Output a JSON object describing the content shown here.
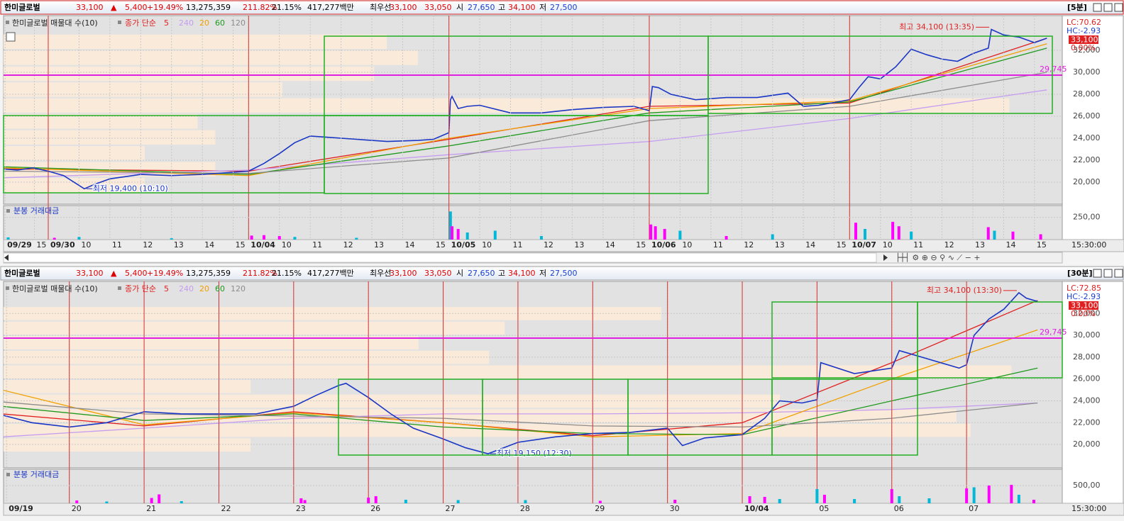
{
  "chart_data": [
    {
      "type": "line",
      "header": {
        "name": "한미글로벌",
        "price": "33,100",
        "arrow": "▲",
        "change": "5,400",
        "change_pct": "+19.49%",
        "volume": "13,275,359",
        "volume_ratio": "211.82%",
        "turnover": "21.15%",
        "amount": "417,277백만",
        "best_label": "최우선",
        "ask": "33,100",
        "bid": "33,050",
        "open_label": "시",
        "open": "27,650",
        "high_label": "고",
        "high": "34,100",
        "low_label": "저",
        "low": "27,500",
        "interval": "[5분]"
      },
      "legend_title": "한미글로벌 매물대 수(10)",
      "ma_label": "종가 단순",
      "xlim": [
        -1.45,
        32.9
      ],
      "ylim": [
        18000,
        35160
      ],
      "yticks": [
        {
          "value": 20000,
          "label": "20,000"
        },
        {
          "value": 22000,
          "label": "22,000"
        },
        {
          "value": 24000,
          "label": "24,000"
        },
        {
          "value": 26000,
          "label": "26,000"
        },
        {
          "value": 28000,
          "label": "28,000"
        },
        {
          "value": 30000,
          "label": "30,000"
        },
        {
          "value": 32000,
          "label": "32,000"
        }
      ],
      "xticks": [
        {
          "value": -1.4,
          "label": "09/29"
        },
        {
          "value": -0.45,
          "label": "15"
        },
        {
          "value": 0,
          "label": "09/30"
        },
        {
          "value": 1,
          "label": "10"
        },
        {
          "value": 2,
          "label": "11"
        },
        {
          "value": 3,
          "label": "12"
        },
        {
          "value": 4,
          "label": "13"
        },
        {
          "value": 5,
          "label": "14"
        },
        {
          "value": 6,
          "label": "15"
        },
        {
          "value": 6.5,
          "label": "10/04"
        },
        {
          "value": 7.5,
          "label": "10"
        },
        {
          "value": 8.5,
          "label": "11"
        },
        {
          "value": 9.5,
          "label": "12"
        },
        {
          "value": 10.5,
          "label": "13"
        },
        {
          "value": 11.5,
          "label": "14"
        },
        {
          "value": 12.5,
          "label": "15"
        },
        {
          "value": 13,
          "label": "10/05"
        },
        {
          "value": 14,
          "label": "10"
        },
        {
          "value": 15,
          "label": "11"
        },
        {
          "value": 16,
          "label": "12"
        },
        {
          "value": 17,
          "label": "13"
        },
        {
          "value": 18,
          "label": "14"
        },
        {
          "value": 19,
          "label": "15"
        },
        {
          "value": 19.5,
          "label": "10/06"
        },
        {
          "value": 20.5,
          "label": "10"
        },
        {
          "value": 21.5,
          "label": "11"
        },
        {
          "value": 22.5,
          "label": "12"
        },
        {
          "value": 23.5,
          "label": "13"
        },
        {
          "value": 24.5,
          "label": "14"
        },
        {
          "value": 25.5,
          "label": "15"
        },
        {
          "value": 26,
          "label": "10/07"
        },
        {
          "value": 27,
          "label": "10"
        },
        {
          "value": 28,
          "label": "11"
        },
        {
          "value": 29,
          "label": "12"
        },
        {
          "value": 30,
          "label": "13"
        },
        {
          "value": 31,
          "label": "14"
        },
        {
          "value": 32,
          "label": "15"
        }
      ],
      "day_starts": [
        0,
        6.5,
        13,
        19.5,
        26
      ],
      "price": {
        "color": "#1a36c4",
        "x": [
          -1.45,
          -1.0,
          -0.5,
          0,
          0.5,
          1.0,
          1.17,
          1.5,
          2,
          3,
          4,
          5,
          6,
          6.5,
          7,
          7.5,
          8,
          8.5,
          9,
          10,
          11,
          12,
          12.5,
          13,
          13.05,
          13.1,
          13.3,
          13.6,
          14,
          15,
          16,
          17,
          18,
          19,
          19.5,
          19.6,
          19.8,
          20.2,
          21,
          22,
          23,
          24,
          24.5,
          25,
          26,
          26.3,
          26.6,
          27,
          27.5,
          28,
          28.5,
          29,
          29.5,
          30,
          30.5,
          30.6,
          31,
          31.5,
          32,
          32.4
        ],
        "values": [
          21200,
          21100,
          21300,
          21000,
          20600,
          19700,
          19400,
          19800,
          20300,
          20700,
          20600,
          20700,
          20900,
          21000,
          21700,
          22600,
          23600,
          24200,
          24100,
          23900,
          23700,
          23800,
          23900,
          24500,
          27500,
          27800,
          26700,
          26900,
          27000,
          26300,
          26300,
          26600,
          26800,
          26900,
          26500,
          28700,
          28600,
          28000,
          27500,
          27700,
          27700,
          28100,
          26900,
          27000,
          27500,
          28600,
          29600,
          29400,
          30500,
          32100,
          31600,
          31200,
          31000,
          31700,
          32200,
          33900,
          33400,
          33200,
          32700,
          33100
        ]
      },
      "series": [
        {
          "name": "5",
          "color": "#e02020",
          "x": [
            -1.45,
            6.5,
            13,
            19.5,
            26,
            32.4
          ],
          "values": [
            21200,
            21000,
            23900,
            26900,
            27200,
            33100
          ]
        },
        {
          "name": "240",
          "color": "#c59cf0",
          "x": [
            -1.45,
            6.5,
            13,
            19.5,
            26,
            32.4
          ],
          "values": [
            20400,
            21100,
            22500,
            23700,
            25800,
            28400
          ]
        },
        {
          "name": "20",
          "color": "#f0a000",
          "x": [
            -1.45,
            6.5,
            13,
            19.5,
            26,
            32.4
          ],
          "values": [
            21300,
            20600,
            24000,
            26700,
            27400,
            32600
          ]
        },
        {
          "name": "60",
          "color": "#1f9a1f",
          "x": [
            -1.45,
            6.5,
            13,
            19.5,
            26,
            32.4
          ],
          "values": [
            21400,
            20700,
            23300,
            26300,
            27300,
            32200
          ]
        },
        {
          "name": "120",
          "color": "#8c8c8c",
          "x": [
            -1.45,
            6.5,
            13,
            19.5,
            26,
            32.4
          ],
          "values": [
            21000,
            20800,
            22200,
            25600,
            26900,
            30000
          ]
        }
      ],
      "profile": {
        "bins": [
          19000,
          20450,
          21900,
          23350,
          24800,
          26250,
          27700,
          29150,
          30600,
          32050,
          33500
        ],
        "values": [
          200,
          300,
          200,
          300,
          275,
          1425,
          395,
          525,
          587,
          543
        ],
        "xlim": [
          0,
          1500
        ]
      },
      "ref_line": {
        "value": 29745,
        "label": "29,745"
      },
      "high": {
        "text": "최고 34,100 (13:35)",
        "x": 30.6,
        "value": 34100
      },
      "low": {
        "text": "최저 19,400 (10:10)",
        "x": 1.17,
        "value": 19400
      },
      "right_labels": {
        "lc": "LC:70.62",
        "hc": "HC:-2.93",
        "last": "33,100",
        "last_pct": "0.00%"
      },
      "volume": {
        "title": "분봉 거래대금",
        "ylim": [
          0,
          383
        ],
        "yticks": [
          {
            "value": 250,
            "label": "250,00"
          }
        ],
        "x": [
          -1.3,
          0.2,
          1,
          4,
          6.6,
          7,
          7.5,
          8,
          10,
          13.05,
          13.1,
          13.3,
          13.6,
          14.5,
          16,
          19.55,
          19.7,
          20,
          20.5,
          22,
          23.5,
          26.2,
          26.5,
          27.4,
          27.6,
          28,
          30.5,
          30.7,
          31.3,
          32.2
        ],
        "values": [
          25,
          20,
          30,
          15,
          45,
          50,
          40,
          30,
          20,
          317,
          150,
          120,
          80,
          100,
          40,
          170,
          150,
          120,
          100,
          40,
          60,
          190,
          120,
          200,
          150,
          90,
          140,
          100,
          90,
          60
        ],
        "colors": [
          "#00b8d8",
          "#ff00ff",
          "#00b8d8",
          "#00b8d8",
          "#ff00ff",
          "#ff00ff",
          "#ff00ff",
          "#00b8d8",
          "#00b8d8",
          "#00b8d8",
          "#ff00ff",
          "#ff00ff",
          "#00b8d8",
          "#00b8d8",
          "#00b8d8",
          "#ff00ff",
          "#ff00ff",
          "#ff00ff",
          "#00b8d8",
          "#ff00ff",
          "#00b8d8",
          "#ff00ff",
          "#00b8d8",
          "#ff00ff",
          "#ff00ff",
          "#00b8d8",
          "#ff00ff",
          "#00b8d8",
          "#ff00ff",
          "#ff00ff"
        ]
      },
      "time_label": "15:30:00"
    },
    {
      "type": "line",
      "header": {
        "name": "한미글로벌",
        "price": "33,100",
        "arrow": "▲",
        "change": "5,400",
        "change_pct": "+19.49%",
        "volume": "13,275,359",
        "volume_ratio": "211.82%",
        "turnover": "21.15%",
        "amount": "417,277백만",
        "best_label": "최우선",
        "ask": "33,100",
        "bid": "33,050",
        "open_label": "시",
        "open": "27,650",
        "high_label": "고",
        "high": "34,100",
        "low_label": "저",
        "low": "27,500",
        "interval": "[30분]"
      },
      "legend_title": "한미글로벌 매물대 수(10)",
      "ma_label": "종가 단순",
      "xlim": [
        0.12,
        14.28
      ],
      "ylim": [
        17860,
        34940
      ],
      "yticks": [
        {
          "value": 20000,
          "label": "20,000"
        },
        {
          "value": 22000,
          "label": "22,000"
        },
        {
          "value": 24000,
          "label": "24,000"
        },
        {
          "value": 26000,
          "label": "26,000"
        },
        {
          "value": 28000,
          "label": "28,000"
        },
        {
          "value": 30000,
          "label": "30,000"
        },
        {
          "value": 32000,
          "label": "32,000"
        }
      ],
      "xticks": [
        {
          "value": 0.16,
          "label": "09/19"
        },
        {
          "value": 1,
          "label": "20"
        },
        {
          "value": 2,
          "label": "21"
        },
        {
          "value": 3,
          "label": "22"
        },
        {
          "value": 4,
          "label": "23"
        },
        {
          "value": 5,
          "label": "26"
        },
        {
          "value": 6,
          "label": "27"
        },
        {
          "value": 7,
          "label": "28"
        },
        {
          "value": 8,
          "label": "29"
        },
        {
          "value": 9,
          "label": "30"
        },
        {
          "value": 10,
          "label": "10/04"
        },
        {
          "value": 11,
          "label": "05"
        },
        {
          "value": 12,
          "label": "06"
        },
        {
          "value": 13,
          "label": "07"
        }
      ],
      "day_starts": [
        1,
        2,
        3,
        4,
        5,
        6,
        7,
        8,
        9,
        10,
        11,
        12,
        13
      ],
      "price": {
        "color": "#1a36c4",
        "x": [
          0.1,
          0.5,
          1.0,
          1.5,
          2.0,
          2.5,
          3.0,
          3.5,
          4.0,
          4.3,
          4.6,
          4.7,
          5.0,
          5.3,
          5.6,
          6.0,
          6.3,
          6.6,
          7.0,
          7.5,
          8.0,
          8.5,
          9.0,
          9.2,
          9.5,
          10.0,
          10.3,
          10.5,
          10.8,
          11.0,
          11.05,
          11.5,
          12.0,
          12.1,
          12.5,
          12.9,
          13.0,
          13.1,
          13.3,
          13.5,
          13.7,
          13.8,
          13.95
        ],
        "values": [
          22700,
          22000,
          21600,
          22000,
          23000,
          22800,
          22800,
          22800,
          23500,
          24500,
          25400,
          25600,
          24300,
          22800,
          21500,
          20500,
          19700,
          19150,
          20200,
          20700,
          21000,
          21100,
          21500,
          19900,
          20600,
          20900,
          22400,
          24000,
          23800,
          24100,
          27500,
          26500,
          27000,
          28600,
          27800,
          27000,
          27300,
          30000,
          31500,
          32400,
          33900,
          33400,
          33100
        ]
      },
      "series": [
        {
          "name": "5",
          "color": "#e02020",
          "x": [
            0.1,
            2,
            4,
            6,
            8,
            10,
            12,
            13.95
          ],
          "values": [
            22800,
            21700,
            23000,
            22000,
            20800,
            22000,
            27500,
            33200
          ]
        },
        {
          "name": "240",
          "color": "#c59cf0",
          "x": [
            0.1,
            2,
            4,
            6,
            8,
            10,
            12,
            13.95
          ],
          "values": [
            20700,
            21500,
            22400,
            22800,
            22800,
            22900,
            23200,
            23800
          ]
        },
        {
          "name": "20",
          "color": "#f0a000",
          "x": [
            0.1,
            2,
            4,
            6,
            8,
            10,
            12,
            13.95
          ],
          "values": [
            25000,
            21800,
            22900,
            22000,
            20700,
            21000,
            26000,
            30500
          ]
        },
        {
          "name": "60",
          "color": "#1f9a1f",
          "x": [
            0.1,
            2,
            4,
            6,
            8,
            10,
            12,
            13.95
          ],
          "values": [
            23500,
            22200,
            22800,
            21600,
            21000,
            20900,
            24000,
            27000
          ]
        },
        {
          "name": "120",
          "color": "#8c8c8c",
          "x": [
            0.1,
            2,
            4,
            6,
            8,
            10,
            12,
            13.95
          ],
          "values": [
            23900,
            22800,
            22600,
            22400,
            21700,
            21600,
            22400,
            23800
          ]
        }
      ],
      "profile": {
        "bins": [
          19290,
          20627,
          21964,
          23301,
          24638,
          25975,
          27312,
          28649,
          29986,
          31323,
          32660
        ],
        "values": [
          350,
          1370,
          1350,
          1100,
          350,
          1428,
          688,
          588,
          710,
          932
        ],
        "xlim": [
          0,
          1500
        ]
      },
      "ref_line": {
        "value": 29745,
        "label": "29,745"
      },
      "high": {
        "text": "최고 34,100 (13:30)",
        "x": 13.7,
        "value": 34100
      },
      "low": {
        "text": "최저 19,150 (12:30)",
        "x": 6.6,
        "value": 19150
      },
      "right_labels": {
        "lc": "LC:72.85",
        "hc": "HC:-2.93",
        "last": "33,100",
        "last_pct": "0.00%"
      },
      "volume": {
        "title": "분봉 거래대금",
        "ylim": [
          0,
          958
        ],
        "yticks": [
          {
            "value": 500,
            "label": "500,00"
          }
        ],
        "x": [
          1.1,
          1.5,
          2.1,
          2.2,
          2.5,
          4.1,
          4.15,
          5.0,
          5.1,
          5.5,
          6.2,
          7.1,
          8.1,
          9.1,
          10.1,
          10.3,
          10.5,
          11.0,
          11.1,
          11.5,
          12.0,
          12.1,
          12.5,
          13.0,
          13.1,
          13.3,
          13.6,
          13.7,
          13.9
        ],
        "values": [
          80,
          50,
          150,
          250,
          60,
          140,
          90,
          160,
          200,
          100,
          90,
          90,
          70,
          100,
          200,
          180,
          120,
          400,
          240,
          120,
          400,
          200,
          140,
          420,
          450,
          500,
          520,
          240,
          100
        ],
        "colors": [
          "#ff00ff",
          "#00b8d8",
          "#ff00ff",
          "#ff00ff",
          "#00b8d8",
          "#ff00ff",
          "#ff00ff",
          "#ff00ff",
          "#ff00ff",
          "#00b8d8",
          "#00b8d8",
          "#00b8d8",
          "#ff00ff",
          "#ff00ff",
          "#ff00ff",
          "#ff00ff",
          "#00b8d8",
          "#00b8d8",
          "#ff00ff",
          "#00b8d8",
          "#ff00ff",
          "#00b8d8",
          "#00b8d8",
          "#ff00ff",
          "#00b8d8",
          "#ff00ff",
          "#ff00ff",
          "#00b8d8",
          "#ff00ff"
        ]
      },
      "time_label": "15:30:00"
    }
  ]
}
